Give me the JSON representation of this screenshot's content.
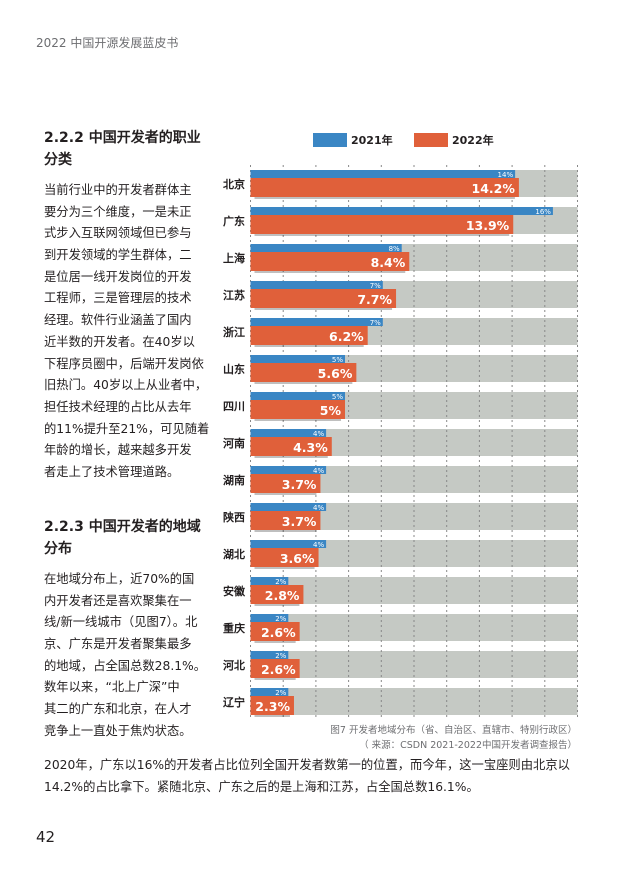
{
  "header": "2022 中国开源发展蓝皮书",
  "section1": {
    "heading": [
      "2.2.2 中国开发者的职业",
      "分类"
    ],
    "lines": [
      "当前行业中的开发者群体主",
      "要分为三个维度，一是未正",
      "式步入互联网领域但已参与",
      "到开发领域的学生群体，二",
      "是位居一线开发岗位的开发",
      "工程师，三是管理层的技术",
      "经理。软件行业涵盖了国内",
      "近半数的开发者。在40岁以",
      "下程序员圈中，后端开发岗依",
      "旧热门。40岁以上从业者中，",
      "担任技术经理的占比从去年",
      "的11%提升至21%，可见随着",
      "年龄的增长，越来越多开发",
      "者走上了技术管理道路。"
    ]
  },
  "section2": {
    "heading": [
      "2.2.3 中国开发者的地域",
      "分布"
    ],
    "lines": [
      "在地域分布上，近70%的国",
      "内开发者还是喜欢聚集在一",
      "线/新一线城市（见图7）。北",
      "京、广东是开发者聚集最多",
      "的地域，占全国总数28.1%。",
      "数年以来，“北上广深”中",
      "其二的广东和北京，在人才",
      "竞争上一直处于焦灼状态。"
    ],
    "full_lines": [
      "2020年，广东以16%的开发者占比位列全国开发者数第一的位置，而今年，这一宝座则由北京以",
      "14.2%的占比拿下。紧随北京、广东之后的是上海和江苏，占全国总数16.1%。"
    ]
  },
  "page_number": "42",
  "chart_data": {
    "type": "bar",
    "orientation": "horizontal",
    "categories": [
      "北京",
      "广东",
      "上海",
      "江苏",
      "浙江",
      "山东",
      "四川",
      "河南",
      "湖南",
      "陕西",
      "湖北",
      "安徽",
      "重庆",
      "河北",
      "辽宁"
    ],
    "series": [
      {
        "name": "2021年",
        "color": "#3a86c4",
        "values": [
          14,
          16,
          8,
          7,
          7,
          5,
          5,
          4,
          4,
          4,
          4,
          2,
          2,
          2,
          2
        ],
        "labels": [
          "14%",
          "16%",
          "8%",
          "7%",
          "7%",
          "5%",
          "5%",
          "4%",
          "4%",
          "4%",
          "4%",
          "2%",
          "2%",
          "2%",
          "2%"
        ]
      },
      {
        "name": "2022年",
        "color": "#e0603a",
        "values": [
          14.2,
          13.9,
          8.4,
          7.7,
          6.2,
          5.6,
          5,
          4.3,
          3.7,
          3.7,
          3.6,
          2.8,
          2.6,
          2.6,
          2.3
        ],
        "labels": [
          "14.2%",
          "13.9%",
          "8.4%",
          "7.7%",
          "6.2%",
          "5.6%",
          "5%",
          "4.3%",
          "3.7%",
          "3.7%",
          "3.6%",
          "2.8%",
          "2.6%",
          "2.6%",
          "2.3%"
        ]
      }
    ],
    "xlim": [
      0,
      17.3
    ],
    "grid": true,
    "legend": "top",
    "background_color": "#c5c9c4",
    "caption": "图7 开发者地域分布（省、自治区、直辖市、特别行政区）",
    "source": "（ 来源：CSDN 2021-2022中国开发者调查报告）"
  }
}
